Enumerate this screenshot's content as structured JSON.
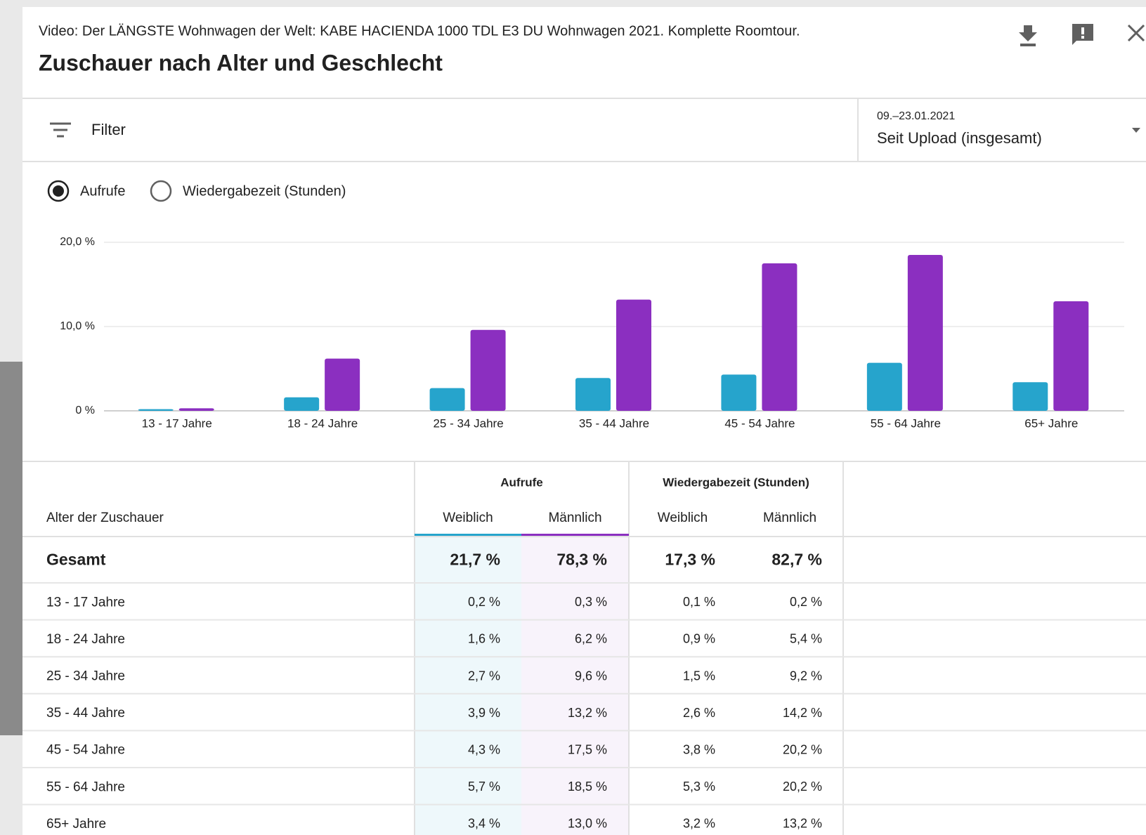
{
  "header": {
    "video": "Video: Der LÄNGSTE Wohnwagen der Welt: KABE HACIENDA 1000 TDL E3 DU Wohnwagen 2021. Komplette Roomtour.",
    "title": "Zuschauer nach Alter und Geschlecht"
  },
  "filter": {
    "placeholder": "Filter",
    "date_range": "09.–23.01.2021",
    "period": "Seit Upload (insgesamt)"
  },
  "metric_options": [
    "Aufrufe",
    "Wiedergabezeit (Stunden)"
  ],
  "selected_option": 0,
  "chart_data": {
    "type": "bar",
    "categories": [
      "13 - 17 Jahre",
      "18 - 24 Jahre",
      "25 - 34 Jahre",
      "35 - 44 Jahre",
      "45 - 54 Jahre",
      "55 - 64 Jahre",
      "65+ Jahre"
    ],
    "series": [
      {
        "color": "#26a4cc",
        "values": [
          0.2,
          1.6,
          2.7,
          3.9,
          4.3,
          5.7,
          3.4
        ]
      },
      {
        "color": "#8b2fc0",
        "values": [
          0.3,
          6.2,
          9.6,
          13.2,
          17.5,
          18.5,
          13.0
        ]
      }
    ],
    "ylim": [
      0,
      20
    ],
    "yticks": [
      {
        "value": 0,
        "label": "0 %"
      },
      {
        "value": 10,
        "label": "10,0 %"
      },
      {
        "value": 20,
        "label": "20,0 %"
      }
    ],
    "grid": true
  },
  "table": {
    "groups": [
      "Aufrufe",
      "Wiedergabezeit (Stunden)"
    ],
    "row_header": "Alter der Zuschauer",
    "subheaders": [
      "Weiblich",
      "Männlich",
      "Weiblich",
      "Männlich"
    ],
    "rows": [
      [
        "Gesamt",
        "21,7 %",
        "78,3 %",
        "17,3 %",
        "82,7 %"
      ],
      [
        "13 - 17 Jahre",
        "0,2 %",
        "0,3 %",
        "0,1 %",
        "0,2 %"
      ],
      [
        "18 - 24 Jahre",
        "1,6 %",
        "6,2 %",
        "0,9 %",
        "5,4 %"
      ],
      [
        "25 - 34 Jahre",
        "2,7 %",
        "9,6 %",
        "1,5 %",
        "9,2 %"
      ],
      [
        "35 - 44 Jahre",
        "3,9 %",
        "13,2 %",
        "2,6 %",
        "14,2 %"
      ],
      [
        "45 - 54 Jahre",
        "4,3 %",
        "17,5 %",
        "3,8 %",
        "20,2 %"
      ],
      [
        "55 - 64 Jahre",
        "5,7 %",
        "18,5 %",
        "5,3 %",
        "20,2 %"
      ],
      [
        "65+ Jahre",
        "3,4 %",
        "13,0 %",
        "3,2 %",
        "13,2 %"
      ]
    ]
  }
}
